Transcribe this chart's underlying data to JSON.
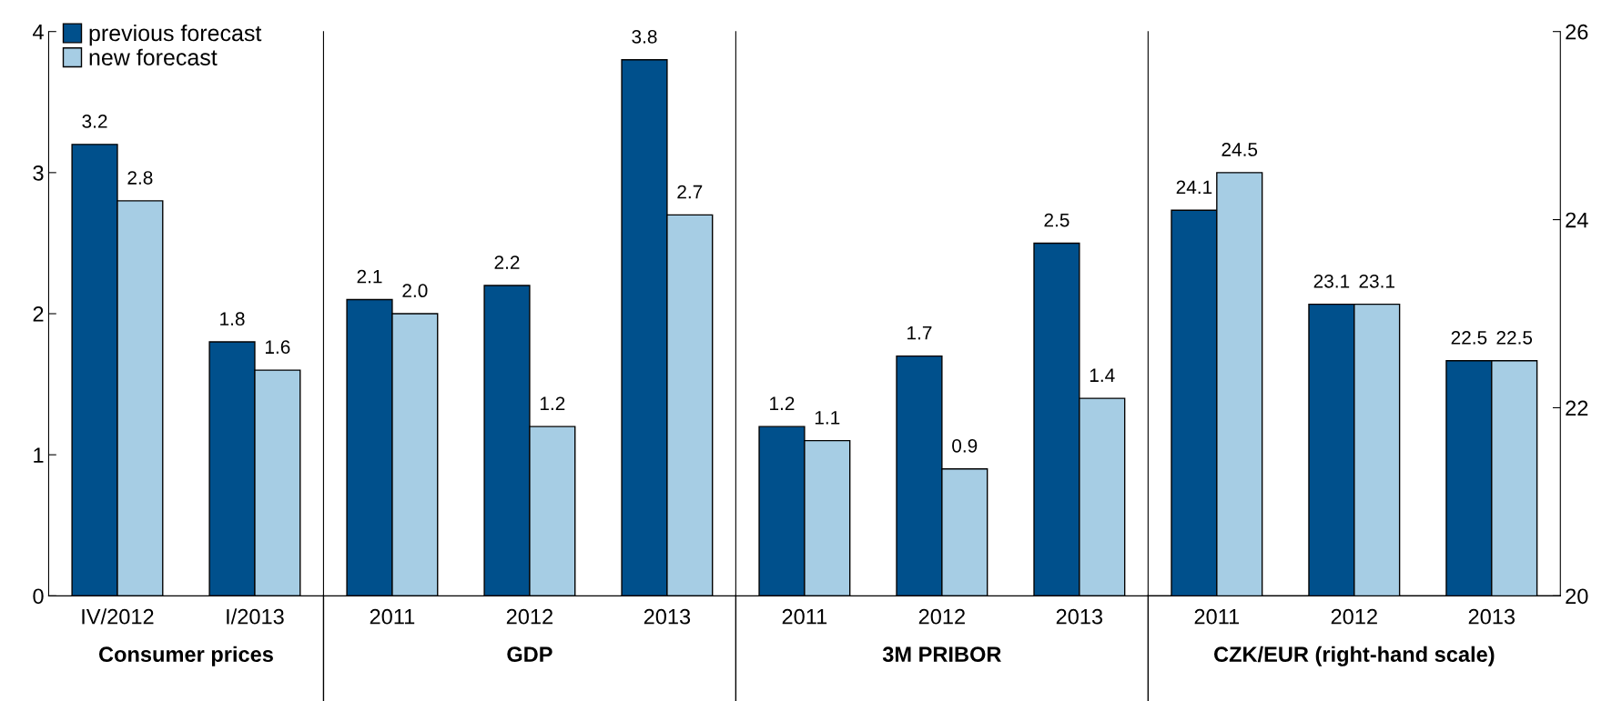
{
  "chart_data": [
    {
      "type": "bar",
      "categories": [
        "IV/2012",
        "I/2013"
      ],
      "xlabel": "Consumer prices",
      "ylim": [
        0,
        4
      ],
      "yticks": [
        0,
        1,
        2,
        3,
        4
      ],
      "legend": "top left",
      "data_labels": true,
      "series": [
        {
          "name": "previous forecast",
          "color": "#00508c",
          "values": [
            3.2,
            1.8
          ]
        },
        {
          "name": "new forecast",
          "color": "#a6cde4",
          "values": [
            2.8,
            1.6
          ]
        }
      ]
    },
    {
      "type": "bar",
      "categories": [
        "2011",
        "2012",
        "2013"
      ],
      "xlabel": "GDP",
      "ylim": [
        0,
        4
      ],
      "tick_labels": "x",
      "data_labels": true,
      "series": [
        {
          "color": "#00508c",
          "values": [
            2.1,
            2.2,
            3.8
          ]
        },
        {
          "color": "#a6cde4",
          "values": [
            2.0,
            1.2,
            2.7
          ],
          "value_labels": [
            "2.0",
            "1.2",
            "2.7"
          ]
        }
      ]
    },
    {
      "type": "bar",
      "categories": [
        "2011",
        "2012",
        "2013"
      ],
      "xlabel": "3M PRIBOR",
      "ylim": [
        0,
        4
      ],
      "tick_labels": "x",
      "data_labels": true,
      "series": [
        {
          "color": "#00508c",
          "values": [
            1.2,
            1.7,
            2.5
          ]
        },
        {
          "color": "#a6cde4",
          "values": [
            1.1,
            0.9,
            1.4
          ]
        }
      ]
    },
    {
      "type": "bar",
      "categories": [
        "2011",
        "2012",
        "2013"
      ],
      "xlabel": "CZK/EUR (right-hand scale)",
      "y2lim": [
        20,
        26
      ],
      "y2ticks": [
        20,
        22,
        24,
        26
      ],
      "data_labels": true,
      "series": [
        {
          "color": "#00508c",
          "axis": "y2",
          "values": [
            24.1,
            23.1,
            22.5
          ]
        },
        {
          "color": "#a6cde4",
          "axis": "y2",
          "values": [
            24.5,
            23.1,
            22.5
          ]
        }
      ]
    }
  ]
}
